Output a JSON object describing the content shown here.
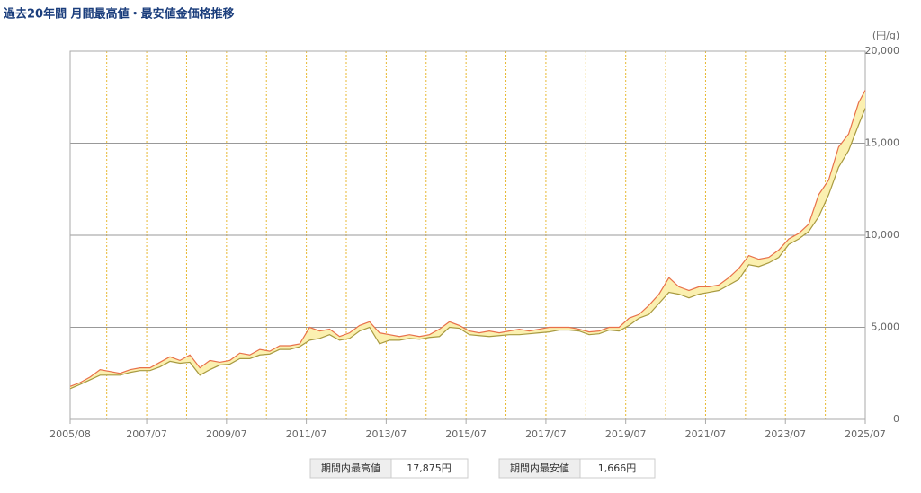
{
  "chart_data": {
    "type": "range-line",
    "title": "過去20年間 月間最高値・最安値金価格推移",
    "unit_label": "(円/g)",
    "x": [
      "2005/08",
      "2005/11",
      "2006/02",
      "2006/05",
      "2006/08",
      "2006/11",
      "2007/02",
      "2007/05",
      "2007/08",
      "2007/11",
      "2008/02",
      "2008/05",
      "2008/08",
      "2008/11",
      "2009/02",
      "2009/05",
      "2009/08",
      "2009/11",
      "2010/02",
      "2010/05",
      "2010/08",
      "2010/11",
      "2011/02",
      "2011/05",
      "2011/08",
      "2011/11",
      "2012/02",
      "2012/05",
      "2012/08",
      "2012/11",
      "2013/02",
      "2013/05",
      "2013/08",
      "2013/11",
      "2014/02",
      "2014/05",
      "2014/08",
      "2014/11",
      "2015/02",
      "2015/05",
      "2015/08",
      "2015/11",
      "2016/02",
      "2016/05",
      "2016/08",
      "2016/11",
      "2017/02",
      "2017/05",
      "2017/08",
      "2017/11",
      "2018/02",
      "2018/05",
      "2018/08",
      "2018/11",
      "2019/02",
      "2019/05",
      "2019/08",
      "2019/11",
      "2020/02",
      "2020/05",
      "2020/08",
      "2020/11",
      "2021/02",
      "2021/05",
      "2021/08",
      "2021/11",
      "2022/02",
      "2022/05",
      "2022/08",
      "2022/11",
      "2023/02",
      "2023/05",
      "2023/08",
      "2023/11",
      "2024/02",
      "2024/05",
      "2024/08",
      "2024/11",
      "2025/02",
      "2025/05",
      "2025/07"
    ],
    "series": [
      {
        "color": "#e8704a",
        "values": [
          1790,
          2000,
          2300,
          2700,
          2600,
          2500,
          2700,
          2800,
          2800,
          3100,
          3400,
          3200,
          3500,
          2800,
          3200,
          3100,
          3200,
          3600,
          3500,
          3800,
          3700,
          4000,
          4000,
          4100,
          5000,
          4800,
          4900,
          4500,
          4700,
          5100,
          5300,
          4700,
          4600,
          4500,
          4600,
          4500,
          4600,
          4900,
          5300,
          5100,
          4800,
          4700,
          4800,
          4700,
          4800,
          4900,
          4800,
          4900,
          5000,
          5000,
          5000,
          4900,
          4750,
          4800,
          5000,
          5000,
          5500,
          5700,
          6200,
          6800,
          7700,
          7200,
          7000,
          7200,
          7200,
          7300,
          7700,
          8200,
          8900,
          8700,
          8800,
          9200,
          9800,
          10100,
          10600,
          12200,
          13000,
          14800,
          15500,
          17200,
          17875
        ]
      },
      {
        "color": "#a89a40",
        "values": [
          1666,
          1900,
          2150,
          2400,
          2400,
          2400,
          2550,
          2650,
          2650,
          2850,
          3150,
          3050,
          3100,
          2400,
          2700,
          2950,
          3000,
          3300,
          3300,
          3500,
          3550,
          3800,
          3800,
          3950,
          4300,
          4400,
          4600,
          4300,
          4400,
          4800,
          5000,
          4100,
          4300,
          4300,
          4400,
          4350,
          4450,
          4500,
          5000,
          4950,
          4600,
          4550,
          4500,
          4550,
          4600,
          4600,
          4650,
          4700,
          4750,
          4850,
          4850,
          4800,
          4600,
          4650,
          4850,
          4800,
          5100,
          5500,
          5700,
          6300,
          6900,
          6800,
          6600,
          6800,
          6900,
          7000,
          7300,
          7600,
          8400,
          8300,
          8500,
          8800,
          9500,
          9800,
          10200,
          11000,
          12200,
          13700,
          14600,
          16000,
          16900
        ]
      }
    ],
    "fill_color": "#fbf0b0",
    "xlim": [
      "2005/08",
      "2025/07"
    ],
    "xticks": [
      "2005/08",
      "2007/07",
      "2009/07",
      "2011/07",
      "2013/07",
      "2015/07",
      "2017/07",
      "2019/07",
      "2021/07",
      "2023/07",
      "2025/07"
    ],
    "ylim": [
      0,
      20000
    ],
    "yticks": [
      0,
      {
        "value": 5000,
        "label": "5,000"
      },
      {
        "value": 10000,
        "label": "10,000"
      },
      {
        "value": 15000,
        "label": "15,000"
      },
      {
        "value": 20000,
        "label": "20,000"
      }
    ],
    "grid": true
  },
  "summary": {
    "high_label": "期間内最高値",
    "high_value": "17,875円",
    "low_label": "期間内最安値",
    "low_value": "1,666円"
  }
}
